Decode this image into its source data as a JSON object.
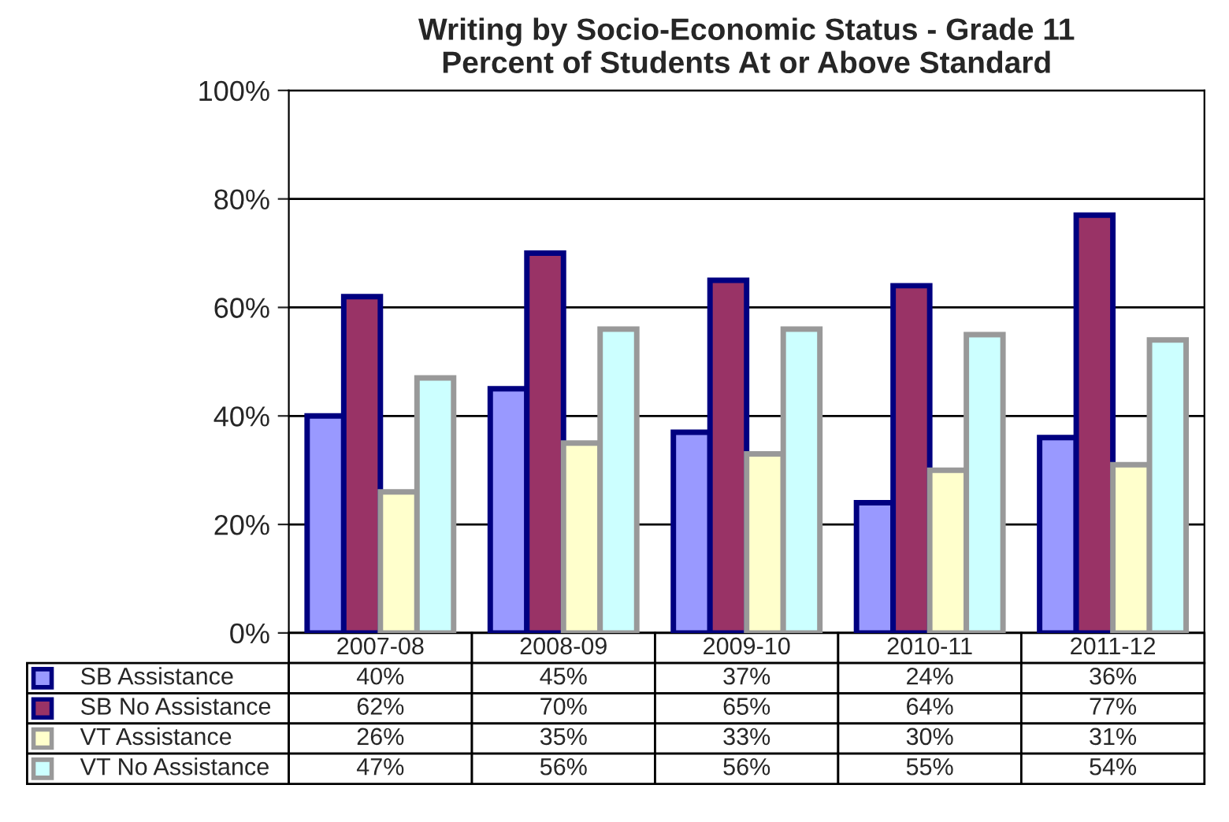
{
  "chart_data": {
    "type": "bar",
    "title": "Writing by Socio-Economic Status - Grade 11\nPercent of Students At or Above Standard",
    "categories": [
      "2007-08",
      "2008-09",
      "2009-10",
      "2010-11",
      "2011-12"
    ],
    "series": [
      {
        "name": "SB Assistance",
        "color": "#9999ff",
        "values": [
          40,
          45,
          37,
          24,
          36
        ],
        "value_labels": [
          "40%",
          "45%",
          "37%",
          "24%",
          "36%"
        ]
      },
      {
        "name": "SB No Assistance",
        "color": "#993366",
        "values": [
          62,
          70,
          65,
          64,
          77
        ],
        "value_labels": [
          "62%",
          "70%",
          "65%",
          "64%",
          "77%"
        ]
      },
      {
        "name": "VT Assistance",
        "color": "#ffffcc",
        "values": [
          26,
          35,
          33,
          30,
          31
        ],
        "value_labels": [
          "26%",
          "35%",
          "33%",
          "30%",
          "31%"
        ]
      },
      {
        "name": "VT No Assistance",
        "color": "#ccffff",
        "values": [
          47,
          56,
          56,
          55,
          54
        ],
        "value_labels": [
          "47%",
          "56%",
          "56%",
          "55%",
          "54%"
        ]
      }
    ],
    "ylim": [
      0,
      100
    ],
    "yticks": [
      {
        "value": 0,
        "label": "0%"
      },
      {
        "value": 20,
        "label": "20%"
      },
      {
        "value": 40,
        "label": "40%"
      },
      {
        "value": 60,
        "label": "60%"
      },
      {
        "value": 80,
        "label": "80%"
      },
      {
        "value": 100,
        "label": "100%"
      }
    ],
    "grid": "y",
    "legend": "bottom"
  }
}
